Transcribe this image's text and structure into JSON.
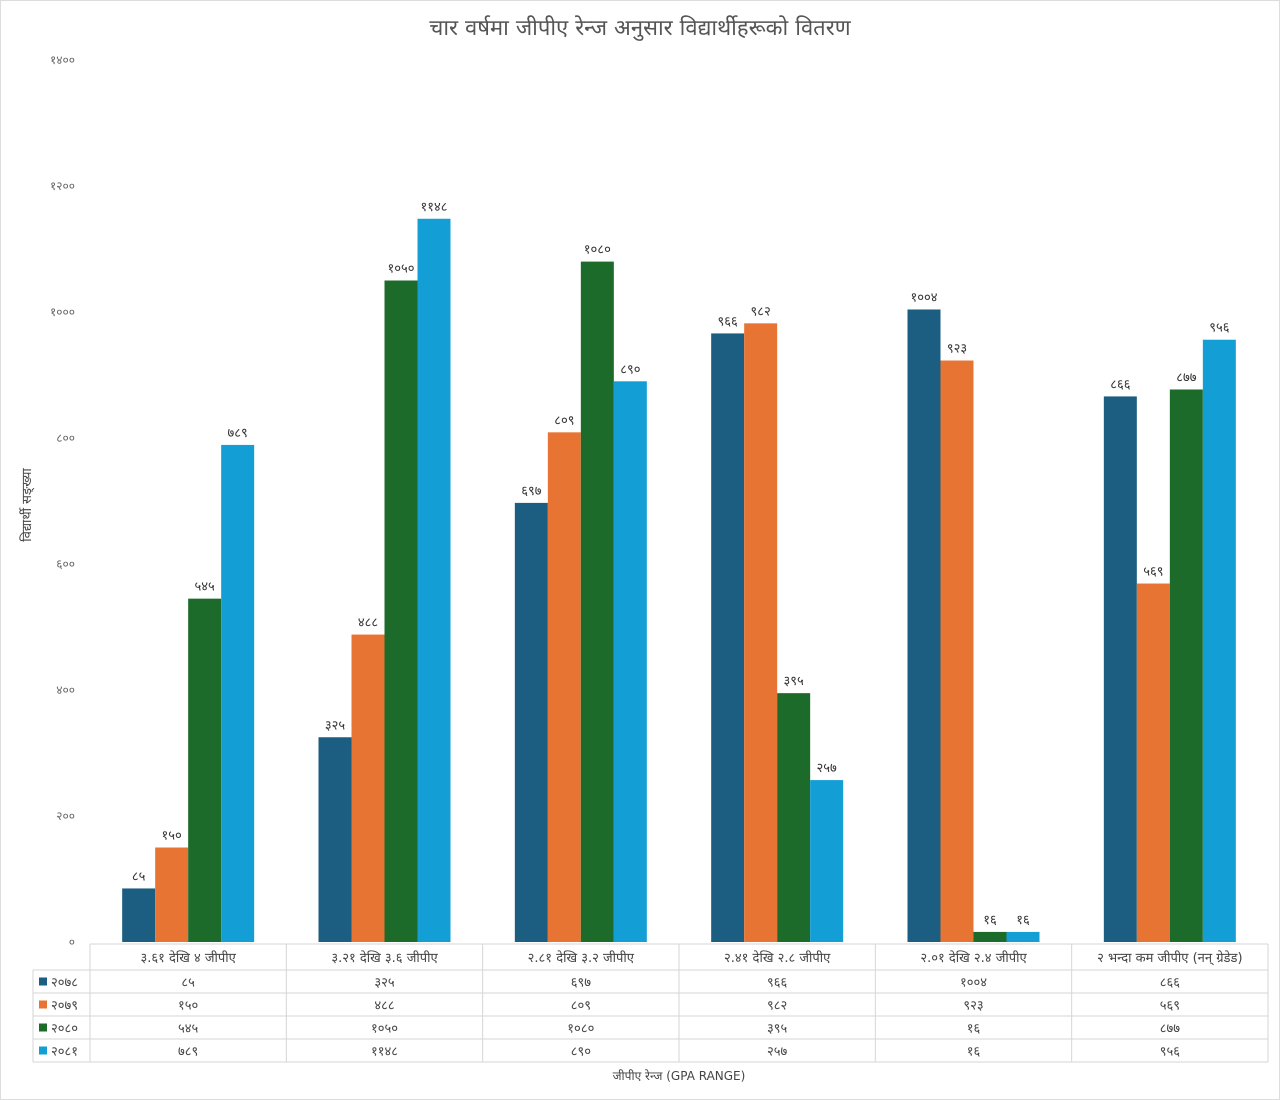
{
  "chart_data": {
    "type": "bar",
    "title": "चार वर्षमा जीपीए रेन्ज अनुसार विद्यार्थीहरूको वितरण",
    "xlabel": "जीपीए रेन्ज (GPA RANGE)",
    "ylabel": "विद्यार्थी सङ्ख्या",
    "ylim": [
      0,
      1400
    ],
    "yticks": [
      0,
      200,
      400,
      600,
      800,
      1000,
      1200,
      1400
    ],
    "ytick_labels": [
      "०",
      "२००",
      "४००",
      "६००",
      "८००",
      "१०००",
      "१२००",
      "१४००"
    ],
    "grid": false,
    "legend": "data-table",
    "categories": [
      "३.६१ देखि ४ जीपीए",
      "३.२१ देखि ३.६ जीपीए",
      "२.८१ देखि ३.२ जीपीए",
      "२.४१ देखि २.८ जीपीए",
      "२.०१ देखि २.४ जीपीए",
      "२ भन्दा कम जीपीए (नन् ग्रेडेड)"
    ],
    "series": [
      {
        "name": "२०७८",
        "color": "#1b5e82",
        "values": [
          85,
          325,
          697,
          966,
          1004,
          866
        ],
        "labels": [
          "८५",
          "३२५",
          "६९७",
          "९६६",
          "१००४",
          "८६६"
        ]
      },
      {
        "name": "२०७९",
        "color": "#e87434",
        "values": [
          150,
          488,
          809,
          982,
          923,
          569
        ],
        "labels": [
          "१५०",
          "४८८",
          "८०९",
          "९८२",
          "९२३",
          "५६९"
        ]
      },
      {
        "name": "२०८०",
        "color": "#1c6b2a",
        "values": [
          545,
          1050,
          1080,
          395,
          16,
          877
        ],
        "labels": [
          "५४५",
          "१०५०",
          "१०८०",
          "३९५",
          "१६",
          "८७७"
        ]
      },
      {
        "name": "२०८१",
        "color": "#139fd6",
        "values": [
          789,
          1148,
          890,
          257,
          16,
          956
        ],
        "labels": [
          "७८९",
          "११४८",
          "८९०",
          "२५७",
          "१६",
          "९५६"
        ]
      }
    ]
  }
}
